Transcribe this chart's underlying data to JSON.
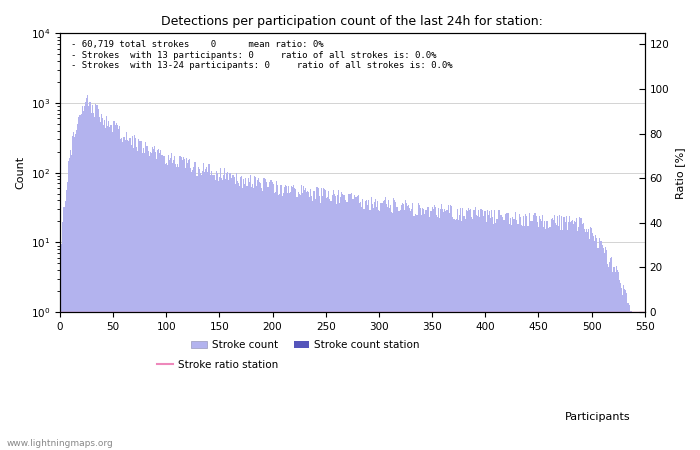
{
  "title": "Detections per participation count of the last 24h for station:",
  "xlabel": "Participants",
  "ylabel_left": "Count",
  "ylabel_right": "Ratio [%]",
  "annotation_lines": [
    "60,719 total strokes    0      mean ratio: 0%",
    "Strokes  with 13 participants: 0     ratio of all strokes is: 0.0%",
    "Strokes  with 13-24 participants: 0     ratio of all strokes is: 0.0%"
  ],
  "watermark": "www.lightningmaps.org",
  "bar_color_light": "#b3b3ee",
  "bar_color_dark": "#5555bb",
  "ratio_line_color": "#ee88bb",
  "xlim": [
    0,
    550
  ],
  "ylim_log_min": 1,
  "ylim_log_max": 10000,
  "ylim_ratio_min": 0,
  "ylim_ratio_max": 125,
  "ratio_ticks": [
    0,
    20,
    40,
    60,
    80,
    100,
    120
  ],
  "xticklabels": [
    0,
    50,
    100,
    150,
    200,
    250,
    300,
    350,
    400,
    450,
    500,
    550
  ],
  "figsize": [
    7.0,
    4.5
  ],
  "dpi": 100
}
